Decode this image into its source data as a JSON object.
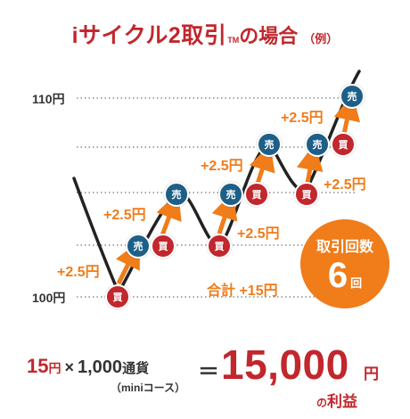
{
  "title": {
    "main": "iサイクル2取引",
    "tm": "TM",
    "rest": "の場合",
    "example": "（例）"
  },
  "axis": {
    "top_label": "110円",
    "bottom_label": "100円"
  },
  "profits": [
    "+2.5円",
    "+2.5円",
    "+2.5円",
    "+2.5円",
    "+2.5円",
    "+2.5円"
  ],
  "coins": {
    "sell": "売",
    "buy": "買"
  },
  "total": "合計 +15円",
  "trade_count": {
    "label": "取引回数",
    "number": "6",
    "unit": "回"
  },
  "formula": {
    "amount": "15",
    "amount_unit": "円",
    "times": "×",
    "currency": "1,000",
    "currency_unit": "通貨",
    "equals": "＝",
    "course": "（miniコース）",
    "result": "15,000",
    "result_unit": "円",
    "result_note_no": "の",
    "result_note": "利益"
  },
  "colors": {
    "red": "#c1272d",
    "orange": "#f07c1a",
    "navy": "#1e5f88",
    "line": "#222222"
  }
}
